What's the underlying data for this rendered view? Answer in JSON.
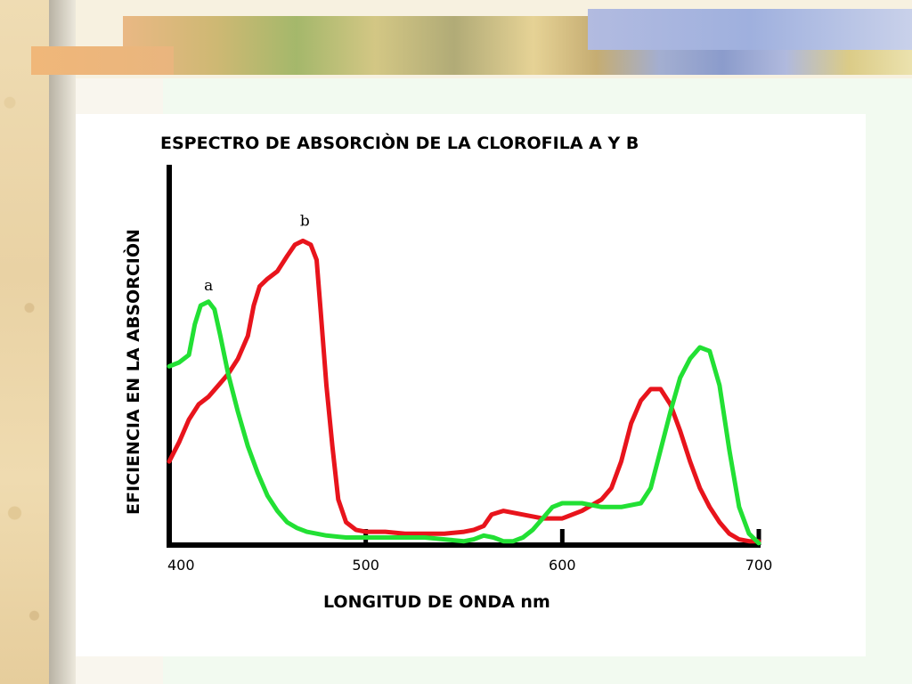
{
  "chart_data": {
    "type": "line",
    "title": "ESPECTRO DE ABSORCIÒN DE LA CLOROFILA  A  Y  B",
    "xlabel": "LONGITUD DE ONDA  nm",
    "ylabel": "EFICIENCIA EN LA ABSORCIÒN",
    "xlim": [
      400,
      700
    ],
    "ylim": [
      0,
      1
    ],
    "xticks": [
      400,
      500,
      600,
      700
    ],
    "xtick_labels": [
      "400",
      "500",
      "600",
      "700"
    ],
    "grid": false,
    "series": [
      {
        "name": "b",
        "color": "#e8141c",
        "label_at": [
          469,
          0.84
        ],
        "points": [
          [
            400,
            0.22
          ],
          [
            405,
            0.27
          ],
          [
            410,
            0.33
          ],
          [
            415,
            0.37
          ],
          [
            420,
            0.39
          ],
          [
            425,
            0.42
          ],
          [
            430,
            0.45
          ],
          [
            435,
            0.49
          ],
          [
            440,
            0.55
          ],
          [
            443,
            0.63
          ],
          [
            446,
            0.68
          ],
          [
            450,
            0.7
          ],
          [
            455,
            0.72
          ],
          [
            460,
            0.76
          ],
          [
            464,
            0.79
          ],
          [
            468,
            0.8
          ],
          [
            472,
            0.79
          ],
          [
            475,
            0.75
          ],
          [
            477,
            0.62
          ],
          [
            480,
            0.42
          ],
          [
            483,
            0.26
          ],
          [
            486,
            0.12
          ],
          [
            490,
            0.06
          ],
          [
            495,
            0.04
          ],
          [
            500,
            0.035
          ],
          [
            510,
            0.035
          ],
          [
            520,
            0.03
          ],
          [
            530,
            0.03
          ],
          [
            540,
            0.03
          ],
          [
            550,
            0.035
          ],
          [
            555,
            0.04
          ],
          [
            560,
            0.05
          ],
          [
            564,
            0.08
          ],
          [
            570,
            0.09
          ],
          [
            575,
            0.085
          ],
          [
            580,
            0.08
          ],
          [
            590,
            0.07
          ],
          [
            600,
            0.07
          ],
          [
            610,
            0.09
          ],
          [
            620,
            0.12
          ],
          [
            625,
            0.15
          ],
          [
            630,
            0.22
          ],
          [
            635,
            0.32
          ],
          [
            640,
            0.38
          ],
          [
            645,
            0.41
          ],
          [
            650,
            0.41
          ],
          [
            655,
            0.37
          ],
          [
            660,
            0.3
          ],
          [
            665,
            0.22
          ],
          [
            670,
            0.15
          ],
          [
            675,
            0.1
          ],
          [
            680,
            0.06
          ],
          [
            685,
            0.03
          ],
          [
            690,
            0.015
          ],
          [
            695,
            0.01
          ],
          [
            700,
            0.01
          ]
        ]
      },
      {
        "name": "a",
        "color": "#22e034",
        "label_at": [
          420,
          0.67
        ],
        "points": [
          [
            400,
            0.47
          ],
          [
            405,
            0.48
          ],
          [
            410,
            0.5
          ],
          [
            413,
            0.58
          ],
          [
            416,
            0.63
          ],
          [
            420,
            0.64
          ],
          [
            423,
            0.62
          ],
          [
            426,
            0.55
          ],
          [
            430,
            0.45
          ],
          [
            435,
            0.35
          ],
          [
            440,
            0.26
          ],
          [
            445,
            0.19
          ],
          [
            450,
            0.13
          ],
          [
            455,
            0.09
          ],
          [
            460,
            0.06
          ],
          [
            465,
            0.045
          ],
          [
            470,
            0.035
          ],
          [
            480,
            0.025
          ],
          [
            490,
            0.02
          ],
          [
            500,
            0.02
          ],
          [
            510,
            0.02
          ],
          [
            520,
            0.02
          ],
          [
            530,
            0.02
          ],
          [
            540,
            0.015
          ],
          [
            550,
            0.01
          ],
          [
            555,
            0.015
          ],
          [
            560,
            0.025
          ],
          [
            565,
            0.02
          ],
          [
            570,
            0.01
          ],
          [
            575,
            0.01
          ],
          [
            580,
            0.02
          ],
          [
            585,
            0.04
          ],
          [
            590,
            0.07
          ],
          [
            595,
            0.1
          ],
          [
            600,
            0.11
          ],
          [
            610,
            0.11
          ],
          [
            620,
            0.1
          ],
          [
            630,
            0.1
          ],
          [
            640,
            0.11
          ],
          [
            645,
            0.15
          ],
          [
            650,
            0.25
          ],
          [
            655,
            0.35
          ],
          [
            660,
            0.44
          ],
          [
            665,
            0.49
          ],
          [
            670,
            0.52
          ],
          [
            675,
            0.51
          ],
          [
            680,
            0.42
          ],
          [
            685,
            0.25
          ],
          [
            690,
            0.1
          ],
          [
            695,
            0.03
          ],
          [
            700,
            0.005
          ]
        ]
      }
    ]
  }
}
